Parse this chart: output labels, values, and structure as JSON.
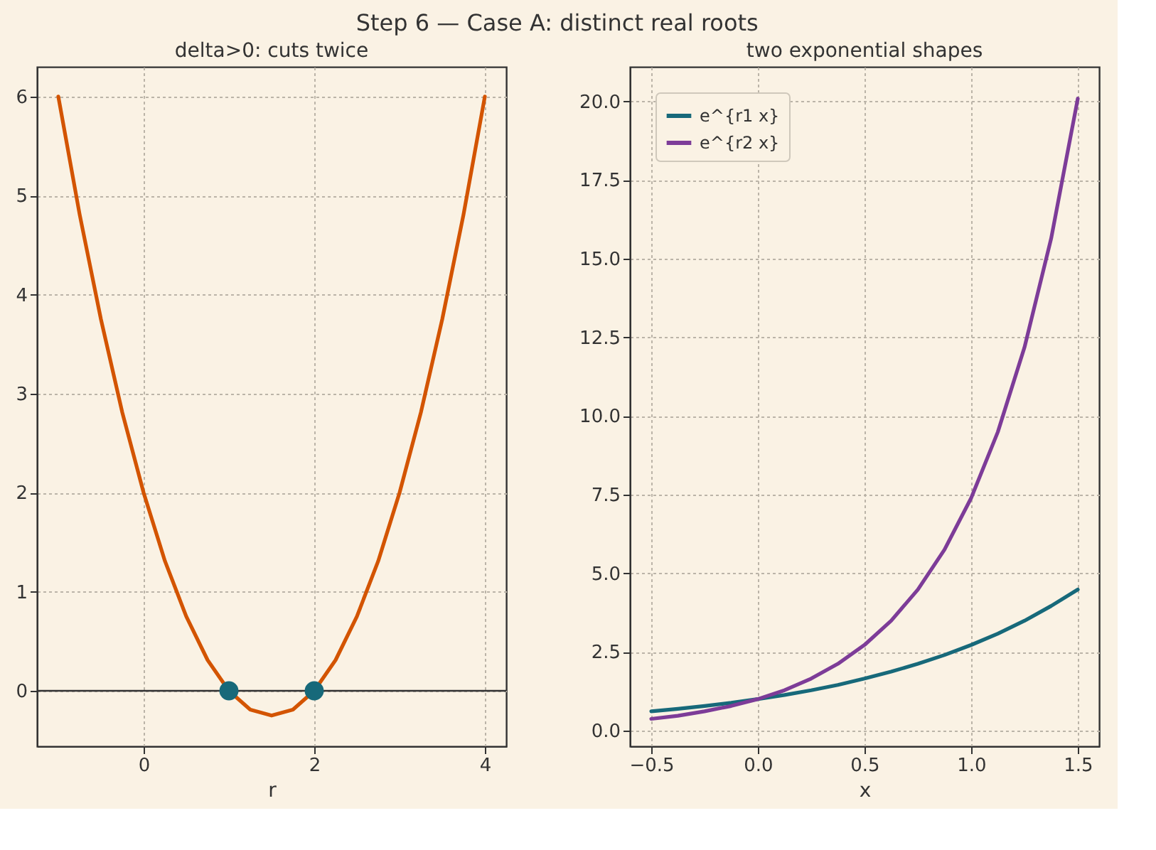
{
  "chart_data": [
    {
      "type": "line",
      "title": "delta>0: cuts twice",
      "xlabel": "r",
      "annotations": [
        "Step 6 — Case A: distinct real roots"
      ],
      "xlim": [
        -1.25,
        4.25
      ],
      "ylim": [
        -0.56,
        6.3
      ],
      "xticks": [
        0,
        2,
        4
      ],
      "yticks": [
        0,
        1,
        2,
        3,
        4,
        5,
        6
      ],
      "grid": true,
      "legend": false,
      "series": [
        {
          "type": "line",
          "color": "#d35400",
          "x": [
            -1,
            -0.75,
            -0.5,
            -0.25,
            0,
            0.25,
            0.5,
            0.75,
            1,
            1.25,
            1.5,
            1.75,
            2,
            2.25,
            2.5,
            2.75,
            3,
            3.25,
            3.5,
            3.75,
            4
          ],
          "values": [
            6,
            4.81,
            3.75,
            2.81,
            2,
            1.31,
            0.75,
            0.31,
            0,
            -0.19,
            -0.25,
            -0.19,
            0,
            0.31,
            0.75,
            1.31,
            2,
            2.81,
            3.75,
            4.81,
            6
          ]
        },
        {
          "type": "scatter",
          "color": "#17697a",
          "marker": "circle",
          "x": [
            1,
            2
          ],
          "values": [
            0,
            0
          ]
        }
      ],
      "ref_lines": [
        {
          "axis": "y",
          "value": 0,
          "color": "#333333"
        }
      ]
    },
    {
      "type": "line",
      "title": "two exponential shapes",
      "xlabel": "x",
      "xlim": [
        -0.6,
        1.6
      ],
      "ylim": [
        -0.5,
        21.1
      ],
      "xticks": [
        {
          "value": -0.5,
          "label": "−0.5"
        },
        {
          "value": 0,
          "label": "0.0"
        },
        {
          "value": 0.5,
          "label": "0.5"
        },
        {
          "value": 1,
          "label": "1.0"
        },
        {
          "value": 1.5,
          "label": "1.5"
        }
      ],
      "yticks": [
        {
          "value": 0,
          "label": "0.0"
        },
        {
          "value": 2.5,
          "label": "2.5"
        },
        {
          "value": 5,
          "label": "5.0"
        },
        {
          "value": 7.5,
          "label": "7.5"
        },
        {
          "value": 10,
          "label": "10.0"
        },
        {
          "value": 12.5,
          "label": "12.5"
        },
        {
          "value": 15,
          "label": "15.0"
        },
        {
          "value": 17.5,
          "label": "17.5"
        },
        {
          "value": 20,
          "label": "20.0"
        }
      ],
      "grid": true,
      "legend": "top left",
      "x": [
        -0.5,
        -0.375,
        -0.25,
        -0.125,
        0,
        0.125,
        0.25,
        0.375,
        0.5,
        0.625,
        0.75,
        0.875,
        1,
        1.125,
        1.25,
        1.375,
        1.5
      ],
      "series": [
        {
          "name": "e^{r1 x}",
          "color": "#17697a",
          "values": [
            0.61,
            0.69,
            0.78,
            0.88,
            1,
            1.13,
            1.28,
            1.45,
            1.65,
            1.87,
            2.12,
            2.4,
            2.72,
            3.08,
            3.49,
            3.96,
            4.48
          ]
        },
        {
          "name": "e^{r2 x}",
          "color": "#7d3c98",
          "values": [
            0.37,
            0.47,
            0.61,
            0.78,
            1,
            1.28,
            1.65,
            2.12,
            2.72,
            3.49,
            4.48,
            5.75,
            7.39,
            9.49,
            12.18,
            15.64,
            20.09
          ]
        }
      ]
    }
  ]
}
